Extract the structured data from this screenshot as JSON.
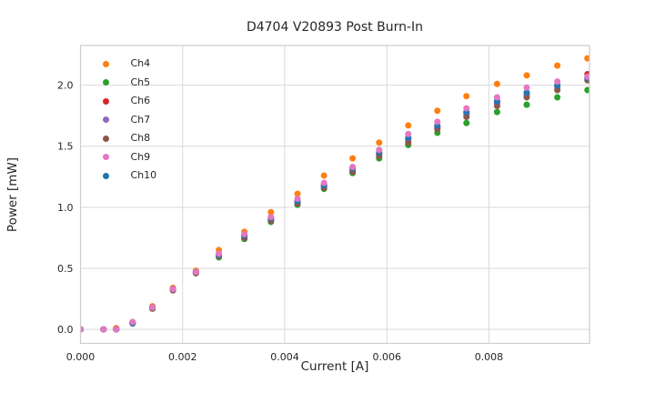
{
  "figure": {
    "background": "#ffffff"
  },
  "chart_data": {
    "type": "scatter",
    "title": "D4704 V20893 Post Burn-In",
    "xlabel": "Current [A]",
    "ylabel": "Power [mW]",
    "xlim": [
      0.0,
      0.00997
    ],
    "ylim": [
      -0.115,
      2.325
    ],
    "grid": true,
    "grid_color": "#d9d9d9",
    "border_color": "#cccccc",
    "legend_position": "upper-left",
    "marker_radius": 3.5,
    "xticks": {
      "values": [
        0.0,
        0.002,
        0.004,
        0.006,
        0.008
      ],
      "labels": [
        "0.000",
        "0.002",
        "0.004",
        "0.006",
        "0.008"
      ]
    },
    "yticks": {
      "values": [
        0.0,
        0.5,
        1.0,
        1.5,
        2.0
      ],
      "labels": [
        "0.0",
        "0.5",
        "1.0",
        "1.5",
        "2.0"
      ]
    },
    "x": [
      0.0,
      0.00045,
      0.0007,
      0.00102,
      0.00141,
      0.00181,
      0.00226,
      0.00271,
      0.00321,
      0.00373,
      0.00425,
      0.00477,
      0.00533,
      0.00585,
      0.00642,
      0.00699,
      0.00756,
      0.00816,
      0.00874,
      0.00934,
      0.00993
    ],
    "series": [
      {
        "name": "Ch4",
        "color": "#ff7f0e",
        "values": [
          0.0,
          0.0,
          0.01,
          0.06,
          0.19,
          0.34,
          0.48,
          0.65,
          0.8,
          0.96,
          1.11,
          1.26,
          1.4,
          1.53,
          1.67,
          1.79,
          1.91,
          2.01,
          2.08,
          2.16,
          2.22
        ]
      },
      {
        "name": "Ch5",
        "color": "#2ca02c",
        "values": [
          0.0,
          0.0,
          0.0,
          0.05,
          0.17,
          0.32,
          0.46,
          0.59,
          0.74,
          0.88,
          1.02,
          1.15,
          1.28,
          1.4,
          1.51,
          1.61,
          1.69,
          1.78,
          1.84,
          1.9,
          1.96
        ]
      },
      {
        "name": "Ch6",
        "color": "#d62728",
        "values": [
          0.0,
          0.0,
          0.0,
          0.05,
          0.18,
          0.33,
          0.47,
          0.61,
          0.77,
          0.91,
          1.05,
          1.18,
          1.31,
          1.44,
          1.56,
          1.66,
          1.77,
          1.86,
          1.93,
          1.99,
          2.09
        ]
      },
      {
        "name": "Ch7",
        "color": "#9467bd",
        "values": [
          0.0,
          0.0,
          0.0,
          0.05,
          0.18,
          0.33,
          0.47,
          0.61,
          0.76,
          0.9,
          1.04,
          1.17,
          1.3,
          1.43,
          1.55,
          1.65,
          1.76,
          1.85,
          1.92,
          1.98,
          2.06
        ]
      },
      {
        "name": "Ch8",
        "color": "#8c564b",
        "values": [
          0.0,
          0.0,
          0.0,
          0.05,
          0.17,
          0.32,
          0.46,
          0.6,
          0.75,
          0.89,
          1.03,
          1.16,
          1.29,
          1.42,
          1.53,
          1.64,
          1.74,
          1.83,
          1.9,
          1.96,
          2.04
        ]
      },
      {
        "name": "Ch9",
        "color": "#e377c2",
        "values": [
          0.0,
          0.0,
          0.0,
          0.06,
          0.18,
          0.33,
          0.47,
          0.62,
          0.78,
          0.92,
          1.07,
          1.2,
          1.33,
          1.47,
          1.6,
          1.7,
          1.81,
          1.9,
          1.98,
          2.03,
          2.07
        ]
      },
      {
        "name": "Ch10",
        "color": "#1f77b4",
        "values": [
          0.0,
          0.0,
          0.0,
          0.05,
          0.18,
          0.33,
          0.47,
          0.61,
          0.77,
          0.91,
          1.05,
          1.18,
          1.32,
          1.45,
          1.57,
          1.67,
          1.78,
          1.87,
          1.94,
          2.0,
          2.06
        ]
      }
    ],
    "draw_order": [
      "Ch4",
      "Ch5",
      "Ch6",
      "Ch7",
      "Ch8",
      "Ch10",
      "Ch9"
    ]
  }
}
